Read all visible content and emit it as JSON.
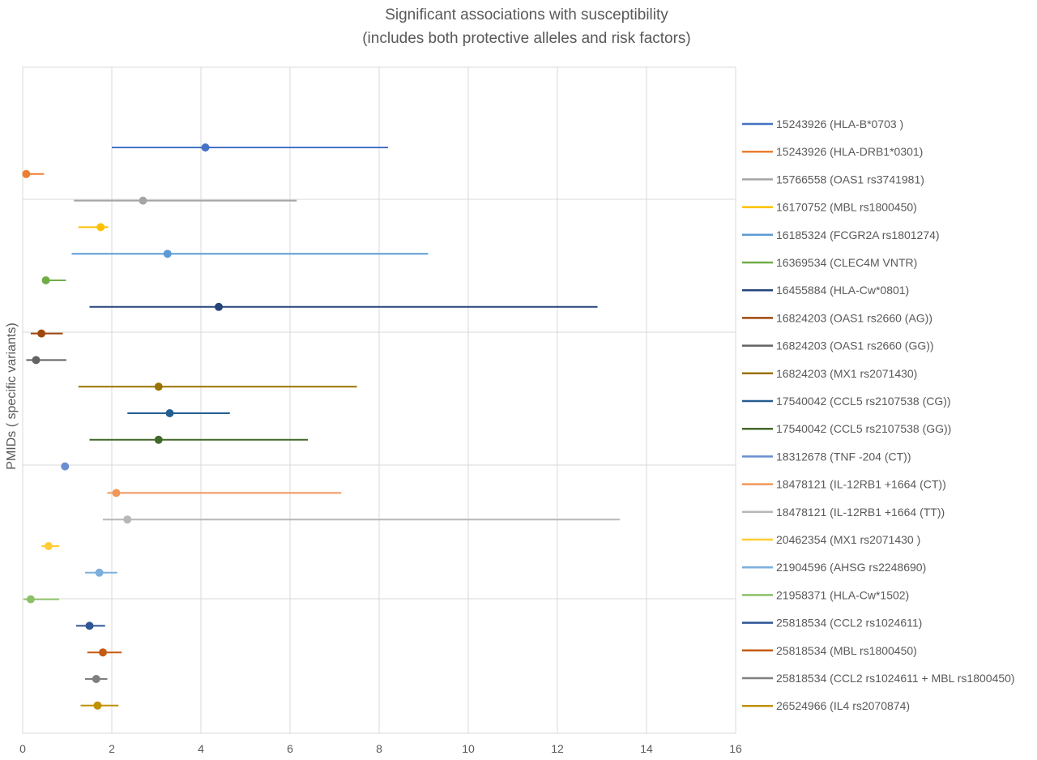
{
  "chart_data": {
    "type": "scatter",
    "title_lines": [
      "Significant associations with susceptibility",
      "(includes both protective alleles and risk factors)"
    ],
    "xlabel": "",
    "ylabel": "PMIDs ( specific variants)",
    "xlim": [
      0,
      16
    ],
    "xticks": [
      0,
      2,
      4,
      6,
      8,
      10,
      12,
      14,
      16
    ],
    "grid": true,
    "legend_position": "right",
    "series": [
      {
        "name": "15243926 (HLA-B*0703 )",
        "point": 4.1,
        "lower": 2.0,
        "upper": 8.2,
        "color": "#4472C4"
      },
      {
        "name": "15243926 (HLA-DRB1*0301)",
        "point": 0.08,
        "lower": 0.0,
        "upper": 0.48,
        "color": "#ED7D31"
      },
      {
        "name": "15766558 (OAS1 rs3741981)",
        "point": 2.7,
        "lower": 1.15,
        "upper": 6.15,
        "color": "#A5A5A5"
      },
      {
        "name": "16170752  (MBL rs1800450)",
        "point": 1.75,
        "lower": 1.25,
        "upper": 1.92,
        "color": "#FFC000"
      },
      {
        "name": "16185324 (FCGR2A rs1801274)",
        "point": 3.25,
        "lower": 1.1,
        "upper": 9.1,
        "color": "#5B9BD5"
      },
      {
        "name": "16369534 (CLEC4M VNTR)",
        "point": 0.52,
        "lower": 0.5,
        "upper": 0.97,
        "color": "#70AD47"
      },
      {
        "name": "16455884 (HLA-Cw*0801)",
        "point": 4.4,
        "lower": 1.5,
        "upper": 12.9,
        "color": "#264478"
      },
      {
        "name": "16824203 (OAS1 rs2660 (AG))",
        "point": 0.42,
        "lower": 0.18,
        "upper": 0.9,
        "color": "#9E480E"
      },
      {
        "name": "16824203 (OAS1 rs2660 (GG))",
        "point": 0.3,
        "lower": 0.08,
        "upper": 0.98,
        "color": "#636363"
      },
      {
        "name": "16824203 (MX1 rs2071430)",
        "point": 3.05,
        "lower": 1.25,
        "upper": 7.5,
        "color": "#997300"
      },
      {
        "name": "17540042 (CCL5 rs2107538 (CG))",
        "point": 3.3,
        "lower": 2.35,
        "upper": 4.65,
        "color": "#255E91"
      },
      {
        "name": "17540042 (CCL5 rs2107538 (GG))",
        "point": 3.05,
        "lower": 1.5,
        "upper": 6.4,
        "color": "#43682B"
      },
      {
        "name": "18312678 (TNF -204 (CT))",
        "point": 0.95,
        "lower": 0.95,
        "upper": 0.95,
        "color": "#698ED0"
      },
      {
        "name": "18478121 (IL-12RB1 +1664 (CT))",
        "point": 2.1,
        "lower": 1.9,
        "upper": 7.15,
        "color": "#F1975A"
      },
      {
        "name": "18478121 (IL-12RB1 +1664 (TT))",
        "point": 2.35,
        "lower": 1.8,
        "upper": 13.4,
        "color": "#B7B7B7"
      },
      {
        "name": "20462354 (MX1 rs2071430 )",
        "point": 0.58,
        "lower": 0.42,
        "upper": 0.82,
        "color": "#FFCD33"
      },
      {
        "name": "21904596 (AHSG rs2248690)",
        "point": 1.72,
        "lower": 1.4,
        "upper": 2.12,
        "color": "#7CAFDD"
      },
      {
        "name": "21958371 (HLA-Cw*1502)",
        "point": 0.18,
        "lower": 0.02,
        "upper": 0.82,
        "color": "#8CC168"
      },
      {
        "name": "25818534 (CCL2 rs1024611)",
        "point": 1.5,
        "lower": 1.2,
        "upper": 1.85,
        "color": "#2F5597"
      },
      {
        "name": "25818534 (MBL rs1800450)",
        "point": 1.8,
        "lower": 1.45,
        "upper": 2.22,
        "color": "#C55A11"
      },
      {
        "name": "25818534 (CCL2 rs1024611 + MBL rs1800450)",
        "point": 1.65,
        "lower": 1.4,
        "upper": 1.9,
        "color": "#7F7F7F"
      },
      {
        "name": "26524966 (IL4 rs2070874)",
        "point": 1.68,
        "lower": 1.3,
        "upper": 2.15,
        "color": "#BF9000"
      }
    ]
  }
}
